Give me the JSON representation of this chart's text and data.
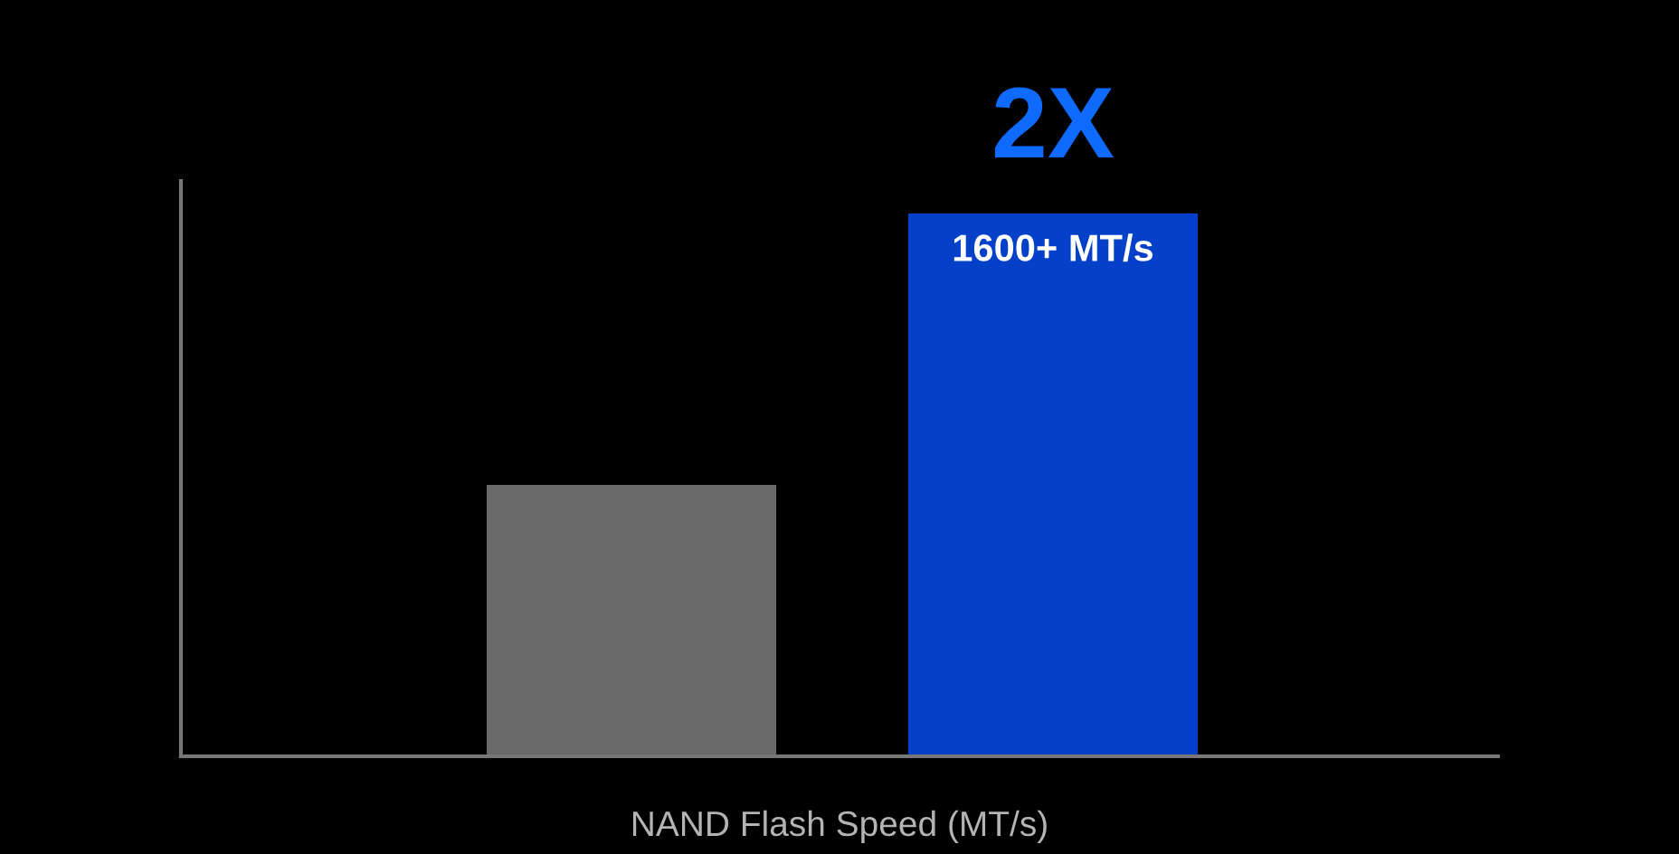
{
  "chart_data": {
    "type": "bar",
    "xlabel": "NAND Flash Speed (MT/s)",
    "categories": [
      null,
      null
    ],
    "values": [
      800,
      1600
    ],
    "colors": [
      "#6b6a6a",
      "#0540c8"
    ],
    "value_labels": [
      null,
      "1600+ MT/s"
    ],
    "annotations": [
      "2X"
    ]
  }
}
